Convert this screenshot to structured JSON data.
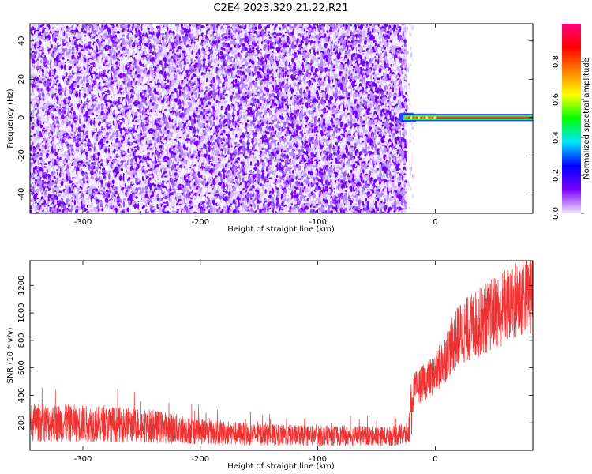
{
  "title": "C2E4.2023.320.21.22.R21",
  "chart_data": [
    {
      "type": "heatmap",
      "xlabel": "Height of straight line (km)",
      "ylabel": "Frequency (Hz)",
      "xlim": [
        -345,
        83
      ],
      "ylim": [
        -50,
        49
      ],
      "xticks": [
        -300,
        -200,
        -100,
        0
      ],
      "yticks": [
        -40,
        -20,
        0,
        20,
        40
      ],
      "noise_region_x": [
        -345,
        -25
      ],
      "signal_line": {
        "frequency": 0,
        "x_range": [
          -28,
          83
        ]
      },
      "colorbar": {
        "label": "Normalized spectral amplitude",
        "range": [
          0,
          1
        ],
        "ticks": [
          0.0,
          0.2,
          0.4,
          0.6,
          0.8
        ],
        "colors": [
          "#f3e6ff",
          "#7a00ff",
          "#0000ff",
          "#00e5ff",
          "#00ff00",
          "#ffff00",
          "#ff8000",
          "#ff0000",
          "#ff0080"
        ]
      }
    },
    {
      "type": "line",
      "xlabel": "Height of straight line (km)",
      "ylabel": "SNR (10 * v/v)",
      "xlim": [
        -345,
        83
      ],
      "ylim": [
        0,
        1380
      ],
      "xticks": [
        -300,
        -200,
        -100,
        0
      ],
      "yticks": [
        200,
        400,
        600,
        800,
        1000,
        1200
      ],
      "series_color": "#f03232",
      "trend": [
        {
          "x": -345,
          "y": 190
        },
        {
          "x": -250,
          "y": 170
        },
        {
          "x": -200,
          "y": 130
        },
        {
          "x": -150,
          "y": 105
        },
        {
          "x": -100,
          "y": 100
        },
        {
          "x": -40,
          "y": 95
        },
        {
          "x": -23,
          "y": 110
        },
        {
          "x": -18,
          "y": 430
        },
        {
          "x": 0,
          "y": 540
        },
        {
          "x": 20,
          "y": 820
        },
        {
          "x": 50,
          "y": 970
        },
        {
          "x": 83,
          "y": 1130
        }
      ]
    }
  ]
}
